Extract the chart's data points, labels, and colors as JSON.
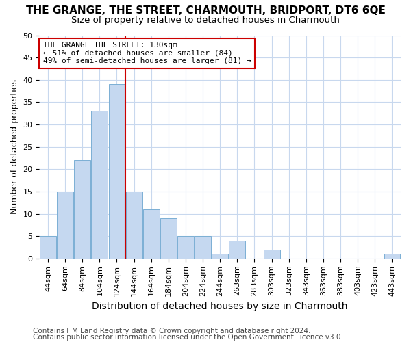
{
  "title": "THE GRANGE, THE STREET, CHARMOUTH, BRIDPORT, DT6 6QE",
  "subtitle": "Size of property relative to detached houses in Charmouth",
  "xlabel": "Distribution of detached houses by size in Charmouth",
  "ylabel": "Number of detached properties",
  "bar_labels": [
    "44sqm",
    "64sqm",
    "84sqm",
    "104sqm",
    "124sqm",
    "144sqm",
    "164sqm",
    "184sqm",
    "204sqm",
    "224sqm",
    "244sqm",
    "263sqm",
    "283sqm",
    "303sqm",
    "323sqm",
    "343sqm",
    "363sqm",
    "383sqm",
    "403sqm",
    "423sqm",
    "443sqm"
  ],
  "bar_values": [
    5,
    15,
    22,
    33,
    39,
    15,
    11,
    9,
    5,
    5,
    1,
    4,
    0,
    2,
    0,
    0,
    0,
    0,
    0,
    0,
    1
  ],
  "bar_color": "#c5d8f0",
  "bar_edge_color": "#7bafd4",
  "vline_color": "#cc0000",
  "vline_x": 4.5,
  "annotation_line1": "THE GRANGE THE STREET: 130sqm",
  "annotation_line2": "← 51% of detached houses are smaller (84)",
  "annotation_line3": "49% of semi-detached houses are larger (81) →",
  "annotation_box_color": "#ffffff",
  "annotation_box_edge": "#cc0000",
  "ylim": [
    0,
    50
  ],
  "yticks": [
    0,
    5,
    10,
    15,
    20,
    25,
    30,
    35,
    40,
    45,
    50
  ],
  "background_color": "#ffffff",
  "plot_bg_color": "#ffffff",
  "grid_color": "#c8d8ee",
  "footer_line1": "Contains HM Land Registry data © Crown copyright and database right 2024.",
  "footer_line2": "Contains public sector information licensed under the Open Government Licence v3.0.",
  "title_fontsize": 11,
  "subtitle_fontsize": 9.5,
  "xlabel_fontsize": 10,
  "ylabel_fontsize": 9,
  "tick_fontsize": 8,
  "footer_fontsize": 7.5
}
